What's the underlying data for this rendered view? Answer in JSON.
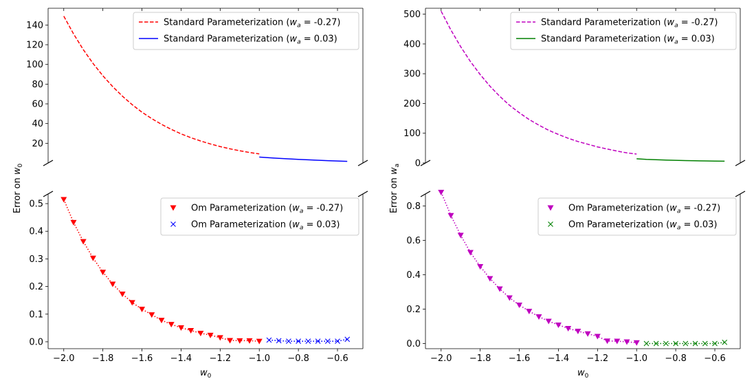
{
  "chart_data": [
    {
      "type": "line",
      "panel": "top-left",
      "ylim": [
        0,
        157
      ],
      "yticks": [
        20,
        40,
        60,
        80,
        100,
        120,
        140
      ],
      "legend_position": "top-right",
      "series": [
        {
          "name": "Standard Parameterization ($w_a$ = -0.27)",
          "style": "dashed",
          "color": "#ff0000",
          "x": [
            -2.0,
            -1.95,
            -1.9,
            -1.85,
            -1.8,
            -1.75,
            -1.7,
            -1.65,
            -1.6,
            -1.55,
            -1.5,
            -1.45,
            -1.4,
            -1.35,
            -1.3,
            -1.25,
            -1.2,
            -1.15,
            -1.1,
            -1.05,
            -1.0
          ],
          "y": [
            149,
            131,
            115,
            101,
            88.5,
            77.5,
            67.8,
            59.2,
            51.6,
            45.0,
            39.2,
            34.1,
            29.6,
            25.7,
            22.3,
            19.3,
            16.7,
            14.4,
            12.4,
            10.7,
            9.2
          ]
        },
        {
          "name": "Standard Parameterization ($w_a$ = 0.03)",
          "style": "solid",
          "color": "#0000ff",
          "x": [
            -1.0,
            -0.95,
            -0.9,
            -0.85,
            -0.8,
            -0.75,
            -0.7,
            -0.65,
            -0.6,
            -0.55
          ],
          "y": [
            6.0,
            5.3,
            4.7,
            4.2,
            3.7,
            3.2,
            2.8,
            2.4,
            2.0,
            1.7
          ]
        }
      ]
    },
    {
      "type": "scatter",
      "panel": "bottom-left",
      "xlim": [
        -2.08,
        -0.47
      ],
      "ylim": [
        -0.025,
        0.535
      ],
      "xticks": [
        -2.0,
        -1.8,
        -1.6,
        -1.4,
        -1.2,
        -1.0,
        -0.8,
        -0.6
      ],
      "xtick_labels": [
        "−2.0",
        "−1.8",
        "−1.6",
        "−1.4",
        "−1.2",
        "−1.0",
        "−0.8",
        "−0.6"
      ],
      "yticks": [
        0.0,
        0.1,
        0.2,
        0.3,
        0.4,
        0.5
      ],
      "ytick_labels": [
        "0.0",
        "0.1",
        "0.2",
        "0.3",
        "0.4",
        "0.5"
      ],
      "xlabel": "w0",
      "ylabel": "Error on w0",
      "legend_position": "top-right",
      "series": [
        {
          "name": "Om Parameterization ($w_a$ = -0.27)",
          "marker": "triangle-down",
          "color": "#ff0000",
          "x": [
            -2.0,
            -1.95,
            -1.9,
            -1.85,
            -1.8,
            -1.75,
            -1.7,
            -1.65,
            -1.6,
            -1.55,
            -1.5,
            -1.45,
            -1.4,
            -1.35,
            -1.3,
            -1.25,
            -1.2,
            -1.15,
            -1.1,
            -1.05,
            -1.0
          ],
          "y": [
            0.515,
            0.432,
            0.363,
            0.303,
            0.252,
            0.209,
            0.173,
            0.142,
            0.118,
            0.098,
            0.078,
            0.063,
            0.051,
            0.041,
            0.031,
            0.024,
            0.015,
            0.005,
            0.004,
            0.004,
            0.002
          ]
        },
        {
          "name": "Om Parameterization ($w_a$ = 0.03)",
          "marker": "x",
          "color": "#0000ff",
          "x": [
            -0.95,
            -0.9,
            -0.85,
            -0.8,
            -0.75,
            -0.7,
            -0.65,
            -0.6,
            -0.55
          ],
          "y": [
            0.006,
            0.004,
            0.002,
            0.002,
            0.002,
            0.002,
            0.002,
            0.002,
            0.009
          ]
        }
      ]
    },
    {
      "type": "line",
      "panel": "top-right",
      "ylim": [
        0,
        520
      ],
      "yticks": [
        0,
        100,
        200,
        300,
        400,
        500
      ],
      "legend_position": "top-right",
      "series": [
        {
          "name": "Standard Parameterization ($w_a$ = -0.27)",
          "style": "dashed",
          "color": "#bf00bf",
          "x": [
            -2.0,
            -1.95,
            -1.9,
            -1.85,
            -1.8,
            -1.75,
            -1.7,
            -1.65,
            -1.6,
            -1.55,
            -1.5,
            -1.45,
            -1.4,
            -1.35,
            -1.3,
            -1.25,
            -1.2,
            -1.15,
            -1.1,
            -1.05,
            -1.0
          ],
          "y": [
            510,
            447,
            391,
            341,
            297,
            258,
            224,
            194,
            169,
            146,
            127,
            110,
            96,
            83,
            72,
            63,
            54,
            47,
            40,
            34,
            30
          ]
        },
        {
          "name": "Standard Parameterization ($w_a$ = 0.03)",
          "style": "solid",
          "color": "#008000",
          "x": [
            -1.0,
            -0.95,
            -0.9,
            -0.85,
            -0.8,
            -0.75,
            -0.7,
            -0.65,
            -0.6,
            -0.55
          ],
          "y": [
            14,
            12,
            11,
            10,
            9,
            8,
            7.5,
            7,
            6.5,
            6
          ]
        }
      ]
    },
    {
      "type": "scatter",
      "panel": "bottom-right",
      "xlim": [
        -2.08,
        -0.47
      ],
      "ylim": [
        -0.03,
        0.87
      ],
      "xticks": [
        -2.0,
        -1.8,
        -1.6,
        -1.4,
        -1.2,
        -1.0,
        -0.8,
        -0.6
      ],
      "xtick_labels": [
        "−2.0",
        "−1.8",
        "−1.6",
        "−1.4",
        "−1.2",
        "−1.0",
        "−0.8",
        "−0.6"
      ],
      "yticks": [
        0.0,
        0.2,
        0.4,
        0.6,
        0.8
      ],
      "ytick_labels": [
        "0.0",
        "0.2",
        "0.4",
        "0.6",
        "0.8"
      ],
      "xlabel": "w0",
      "ylabel": "Error on wa",
      "legend_position": "top-right",
      "series": [
        {
          "name": "Om Parameterization ($w_a$ = -0.27)",
          "marker": "triangle-down",
          "color": "#bf00bf",
          "x": [
            -2.0,
            -1.95,
            -1.9,
            -1.85,
            -1.8,
            -1.75,
            -1.7,
            -1.65,
            -1.6,
            -1.55,
            -1.5,
            -1.45,
            -1.4,
            -1.35,
            -1.3,
            -1.25,
            -1.2,
            -1.15,
            -1.1,
            -1.05,
            -1.0
          ],
          "y": [
            0.88,
            0.745,
            0.63,
            0.53,
            0.448,
            0.378,
            0.318,
            0.266,
            0.224,
            0.188,
            0.156,
            0.13,
            0.108,
            0.088,
            0.072,
            0.057,
            0.042,
            0.015,
            0.014,
            0.01,
            0.005
          ]
        },
        {
          "name": "Om Parameterization ($w_a$ = 0.03)",
          "marker": "x",
          "color": "#008000",
          "x": [
            -0.95,
            -0.9,
            -0.85,
            -0.8,
            -0.75,
            -0.7,
            -0.65,
            -0.6,
            -0.55
          ],
          "y": [
            0.0,
            0.0,
            0.0,
            0.0,
            0.0,
            0.0,
            0.0,
            0.0,
            0.007
          ]
        }
      ]
    }
  ]
}
